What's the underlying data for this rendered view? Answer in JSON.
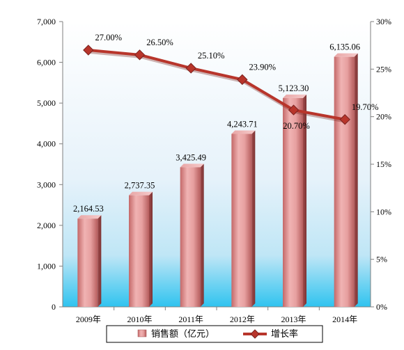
{
  "chart_data": {
    "type": "bar",
    "categories": [
      "2009年",
      "2010年",
      "2011年",
      "2012年",
      "2013年",
      "2014年"
    ],
    "series": [
      {
        "name": "销售额（亿元）",
        "type": "bar",
        "axis": "left",
        "values": [
          2164.53,
          2737.35,
          3425.49,
          4243.71,
          5123.3,
          6135.06
        ],
        "labels": [
          "2,164.53",
          "2,737.35",
          "3,425.49",
          "4,243.71",
          "5,123.30",
          "6,135.06"
        ]
      },
      {
        "name": "增长率",
        "type": "line",
        "axis": "right",
        "values": [
          27.0,
          26.5,
          25.1,
          23.9,
          20.7,
          19.7
        ],
        "labels": [
          "27.00%",
          "26.50%",
          "25.10%",
          "23.90%",
          "20.70%",
          "19.70%"
        ]
      }
    ],
    "y_left": {
      "range": [
        0,
        7000
      ],
      "ticks": [
        0,
        1000,
        2000,
        3000,
        4000,
        5000,
        6000,
        7000
      ],
      "tick_labels": [
        "0",
        "1,000",
        "2,000",
        "3,000",
        "4,000",
        "5,000",
        "6,000",
        "7,000"
      ]
    },
    "y_right": {
      "range": [
        0,
        30
      ],
      "ticks": [
        0,
        5,
        10,
        15,
        20,
        25,
        30
      ],
      "tick_labels": [
        "0%",
        "5%",
        "10%",
        "15%",
        "20%",
        "25%",
        "30%"
      ]
    },
    "legend_position": "bottom",
    "grid": false,
    "colors": {
      "bar": "#d97f7f",
      "bar_dark": "#b05a5a",
      "line": "#c0392b",
      "line_dark": "#9a2a22",
      "plot_background_top": "#eaf4fb",
      "plot_background_bottom": "#33c4ee"
    }
  }
}
